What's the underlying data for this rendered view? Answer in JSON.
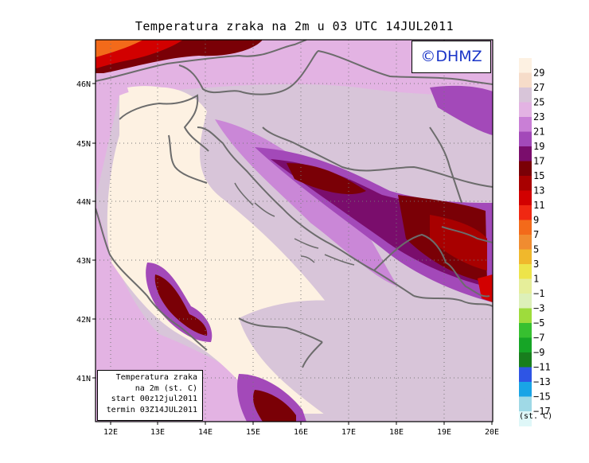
{
  "title": "Temperatura zraka na 2m u 03 UTC 14JUL2011",
  "logo": "©DHMZ",
  "info_box": {
    "line1": "Temperatura zraka",
    "line2": "na 2m (st. C)",
    "line3": "start 00z12jul2011",
    "line4": "termin 03Z14JUL2011"
  },
  "axes": {
    "lon_ticks": [
      "12E",
      "13E",
      "14E",
      "15E",
      "16E",
      "17E",
      "18E",
      "19E",
      "20E"
    ],
    "lat_ticks": [
      "46N",
      "45N",
      "44N",
      "43N",
      "42N",
      "41N"
    ]
  },
  "colorbar": {
    "unit": "(st. C)",
    "labels": [
      "29",
      "27",
      "25",
      "23",
      "21",
      "19",
      "17",
      "15",
      "13",
      "11",
      "9",
      "7",
      "5",
      "3",
      "1",
      "−1",
      "−3",
      "−5",
      "−7",
      "−9",
      "−11",
      "−13",
      "−15",
      "−17"
    ],
    "colors": [
      "#fdf1e2",
      "#f6dcc9",
      "#d8c5d9",
      "#e3b3e3",
      "#c97fd6",
      "#a349b9",
      "#7a0d6c",
      "#7a0006",
      "#a80000",
      "#d20000",
      "#f02812",
      "#f36a1a",
      "#f08c30",
      "#f0b82c",
      "#ede44a",
      "#e6ee9a",
      "#ddf0b9",
      "#9edc3c",
      "#37c030",
      "#16a526",
      "#187e1d",
      "#2e55e5",
      "#19a4e6",
      "#9fd9e6",
      "#dff7f8"
    ]
  }
}
